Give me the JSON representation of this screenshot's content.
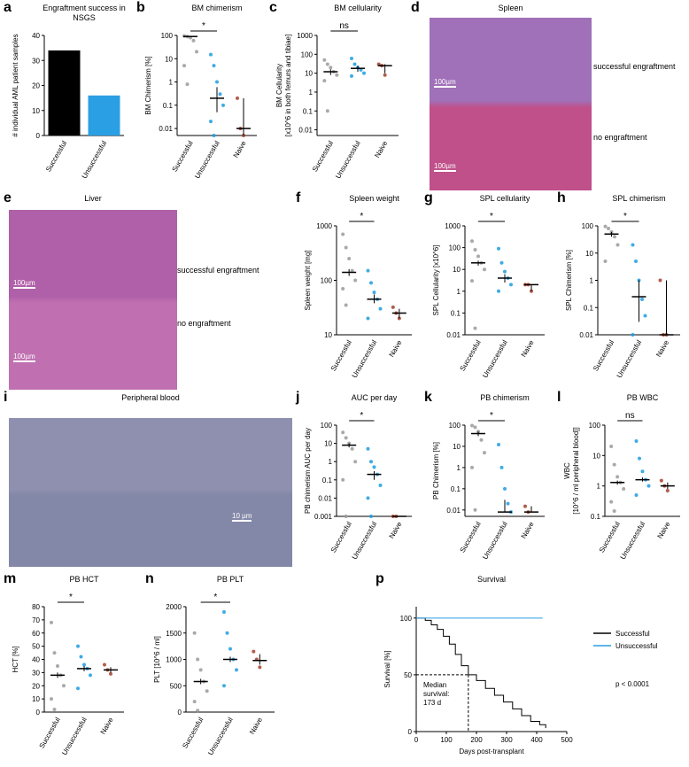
{
  "chart_data": [
    {
      "type": "bar",
      "panel": "a",
      "title": "Engraftment success in NSGS",
      "ylabel": [
        "# individual AML patient samples"
      ],
      "categories": [
        "Successful",
        "Unsuccessful"
      ],
      "values": [
        34,
        16
      ],
      "colors": [
        "#000000",
        "#2a9fe4"
      ],
      "ylim": [
        0,
        40
      ],
      "yticks": [
        0,
        10,
        20,
        30,
        40
      ]
    },
    {
      "type": "dot",
      "panel": "b",
      "title": "BM chimerism",
      "ylabel": [
        "BM Chimerism [%]"
      ],
      "log": true,
      "annotation": "*",
      "categories": [
        "Successful",
        "Unsuccessful",
        "Naive"
      ],
      "colors": [
        "#9a9a9a",
        "#1f9ce0",
        "#a5412b"
      ],
      "median": [
        90,
        0.2,
        0.01
      ],
      "low": [
        85,
        0.05,
        0.005
      ],
      "high": [
        95,
        0.6,
        0.2
      ],
      "points": [
        [
          95,
          90,
          80,
          60,
          20,
          5,
          0.8
        ],
        [
          15,
          5,
          1,
          0.3,
          0.1,
          0.02,
          0.005
        ],
        [
          0.2,
          0.01,
          0.005
        ]
      ],
      "ylim": [
        0.005,
        100
      ],
      "yticks": [
        0.01,
        0.1,
        1,
        10,
        100
      ]
    },
    {
      "type": "dot",
      "panel": "c",
      "title": "BM cellularity",
      "ylabel": [
        "BM Cellularity",
        "[x10^6 in both femurs and tibiae]"
      ],
      "log": true,
      "annotation": "ns",
      "categories": [
        "Successful",
        "Unsuccessful",
        "Naive"
      ],
      "colors": [
        "#9a9a9a",
        "#1f9ce0",
        "#a5412b"
      ],
      "median": [
        12,
        18,
        25
      ],
      "low": [
        8,
        12,
        10
      ],
      "high": [
        16,
        25,
        30
      ],
      "points": [
        [
          50,
          30,
          20,
          12,
          8,
          4,
          0.1
        ],
        [
          60,
          30,
          20,
          15,
          10,
          7
        ],
        [
          30,
          25,
          8
        ]
      ],
      "ylim": [
        0.005,
        1000
      ],
      "yticks": [
        0.01,
        0.1,
        1,
        10,
        100,
        1000
      ]
    },
    {
      "type": "dot",
      "panel": "f",
      "title": "Spleen weight",
      "ylabel": [
        "Spleen weight [mg]"
      ],
      "log": true,
      "annotation": "*",
      "categories": [
        "Successful",
        "Unsuccessful",
        "Naive"
      ],
      "colors": [
        "#9a9a9a",
        "#1f9ce0",
        "#a5412b"
      ],
      "median": [
        140,
        45,
        25
      ],
      "low": [
        120,
        38,
        20
      ],
      "high": [
        160,
        55,
        30
      ],
      "points": [
        [
          700,
          400,
          250,
          150,
          100,
          70,
          35
        ],
        [
          150,
          90,
          60,
          45,
          30,
          20
        ],
        [
          32,
          25,
          20
        ]
      ],
      "ylim": [
        10,
        1000
      ],
      "yticks": [
        10,
        100,
        1000
      ]
    },
    {
      "type": "dot",
      "panel": "g",
      "title": "SPL cellularity",
      "ylabel": [
        "SPL Cellularity [x10^6]"
      ],
      "log": true,
      "annotation": "*",
      "categories": [
        "Successful",
        "Unsuccessful",
        "Naive"
      ],
      "colors": [
        "#9a9a9a",
        "#1f9ce0",
        "#a5412b"
      ],
      "median": [
        20,
        4,
        2
      ],
      "low": [
        15,
        2.5,
        1
      ],
      "high": [
        25,
        6,
        2
      ],
      "points": [
        [
          200,
          80,
          40,
          20,
          10,
          3,
          0.02
        ],
        [
          90,
          20,
          8,
          4,
          2,
          1
        ],
        [
          2,
          2,
          1
        ]
      ],
      "ylim": [
        0.01,
        1000
      ],
      "yticks": [
        0.01,
        0.1,
        1,
        10,
        100,
        1000
      ]
    },
    {
      "type": "dot",
      "panel": "h",
      "title": "SPL chimerism",
      "ylabel": [
        "SPL Chimerism [%]"
      ],
      "log": true,
      "annotation": "*",
      "categories": [
        "Successful",
        "Unsuccessful",
        "Naive"
      ],
      "colors": [
        "#9a9a9a",
        "#1f9ce0",
        "#a5412b"
      ],
      "median": [
        50,
        0.25,
        0.01
      ],
      "low": [
        40,
        0.03,
        0.01
      ],
      "high": [
        60,
        1,
        1
      ],
      "points": [
        [
          95,
          80,
          60,
          40,
          20,
          5
        ],
        [
          20,
          5,
          1,
          0.2,
          0.05,
          0.01
        ],
        [
          1,
          0.01,
          0.01
        ]
      ],
      "ylim": [
        0.01,
        100
      ],
      "yticks": [
        0.01,
        0.1,
        1,
        10,
        100
      ]
    },
    {
      "type": "dot",
      "panel": "j",
      "title": "AUC per day",
      "ylabel": [
        "PB chimerism AUC per day"
      ],
      "log": true,
      "annotation": "*",
      "categories": [
        "Successful",
        "Unsuccessful",
        "Naive"
      ],
      "colors": [
        "#9a9a9a",
        "#1f9ce0",
        "#a5412b"
      ],
      "median": [
        8,
        0.2,
        0.001
      ],
      "low": [
        6,
        0.1,
        0.001
      ],
      "high": [
        10,
        0.3,
        0.001
      ],
      "points": [
        [
          40,
          20,
          10,
          5,
          1,
          0.1,
          0.001
        ],
        [
          5,
          1,
          0.5,
          0.2,
          0.05,
          0.01,
          0.001
        ],
        [
          0.001,
          0.001
        ]
      ],
      "ylim": [
        0.001,
        100
      ],
      "yticks": [
        0.001,
        0.01,
        0.1,
        1,
        10,
        100
      ]
    },
    {
      "type": "dot",
      "panel": "k",
      "title": "PB chimerism",
      "ylabel": [
        "PB Chimerism [%]"
      ],
      "log": true,
      "annotation": "*",
      "categories": [
        "Successful",
        "Unsuccessful",
        "Naive"
      ],
      "colors": [
        "#9a9a9a",
        "#1f9ce0",
        "#a5412b"
      ],
      "median": [
        40,
        0.008,
        0.008
      ],
      "low": [
        30,
        0.008,
        0.008
      ],
      "high": [
        50,
        0.03,
        0.015
      ],
      "points": [
        [
          95,
          80,
          50,
          20,
          5,
          1,
          0.01
        ],
        [
          12,
          1,
          0.1,
          0.02,
          0.008
        ],
        [
          0.015,
          0.008
        ]
      ],
      "ylim": [
        0.005,
        100
      ],
      "yticks": [
        0.01,
        0.1,
        1,
        10,
        100
      ]
    },
    {
      "type": "dot",
      "panel": "l",
      "title": "PB WBC",
      "ylabel": [
        "WBC",
        "[10^6 / ml peripheral blood]]"
      ],
      "log": true,
      "annotation": "ns",
      "categories": [
        "Successful",
        "Unsuccessful",
        "Naive"
      ],
      "colors": [
        "#9a9a9a",
        "#1f9ce0",
        "#a5412b"
      ],
      "median": [
        1.3,
        1.6,
        1
      ],
      "low": [
        1.1,
        1.4,
        0.8
      ],
      "high": [
        1.5,
        1.9,
        1.3
      ],
      "points": [
        [
          20,
          5,
          2,
          1.3,
          0.8,
          0.3,
          0.15
        ],
        [
          30,
          8,
          3,
          1.6,
          1,
          0.5
        ],
        [
          1.5,
          1,
          0.7
        ]
      ],
      "ylim": [
        0.1,
        100
      ],
      "yticks": [
        0.1,
        1,
        10,
        100
      ]
    },
    {
      "type": "dot",
      "panel": "m",
      "title": "PB HCT",
      "ylabel": [
        "HCT [%]"
      ],
      "log": false,
      "annotation": "*",
      "categories": [
        "Successful",
        "Unsuccessful",
        "Naive"
      ],
      "colors": [
        "#9a9a9a",
        "#1f9ce0",
        "#a5412b"
      ],
      "median": [
        28,
        33,
        32
      ],
      "low": [
        26,
        31,
        30
      ],
      "high": [
        30,
        35,
        34
      ],
      "points": [
        [
          68,
          45,
          35,
          28,
          20,
          10,
          2
        ],
        [
          50,
          42,
          36,
          33,
          28,
          18
        ],
        [
          36,
          32,
          29
        ]
      ],
      "ylim": [
        0,
        80
      ],
      "yticks": [
        0,
        10,
        20,
        30,
        40,
        50,
        60,
        70,
        80
      ]
    },
    {
      "type": "dot",
      "panel": "n",
      "title": "PB PLT",
      "ylabel": [
        "PLT [10^6 / ml]"
      ],
      "log": false,
      "annotation": "*",
      "categories": [
        "Successful",
        "Unsuccessful",
        "Naive"
      ],
      "colors": [
        "#9a9a9a",
        "#1f9ce0",
        "#a5412b"
      ],
      "median": [
        580,
        1000,
        980
      ],
      "low": [
        530,
        950,
        900
      ],
      "high": [
        630,
        1050,
        1100
      ],
      "points": [
        [
          1500,
          1000,
          800,
          580,
          400,
          200,
          30
        ],
        [
          1900,
          1500,
          1200,
          1000,
          800,
          500
        ],
        [
          1150,
          1000,
          850
        ]
      ],
      "ylim": [
        0,
        2000
      ],
      "yticks": [
        0,
        500,
        1000,
        1500,
        2000
      ]
    },
    {
      "type": "survival",
      "panel": "p",
      "title": "Survival",
      "ylabel": [
        "Survival [%]"
      ],
      "xlabel": "Days post-transplant",
      "series": [
        {
          "name": "Successful",
          "color": "#000000",
          "x": [
            0,
            30,
            50,
            70,
            90,
            110,
            130,
            150,
            173,
            200,
            230,
            260,
            290,
            320,
            350,
            380,
            410,
            430
          ],
          "values": [
            100,
            98,
            94,
            90,
            84,
            77,
            68,
            58,
            50,
            45,
            38,
            32,
            26,
            20,
            14,
            9,
            6,
            3
          ]
        },
        {
          "name": "Unsuccessful",
          "color": "#2a9fe4",
          "x": [
            0,
            420
          ],
          "values": [
            100,
            100
          ]
        }
      ],
      "median_x": 173,
      "median_y": 50,
      "median_label": [
        "Median",
        "survival:",
        "173 d"
      ],
      "p_value": "p < 0.0001",
      "xlim": [
        0,
        500
      ],
      "xticks": [
        0,
        100,
        200,
        300,
        400,
        500
      ],
      "ylim": [
        0,
        110
      ],
      "yticks": [
        0,
        50,
        100
      ]
    }
  ],
  "images": [
    {
      "panel": "d",
      "title": "Spleen",
      "labels": [
        "successful engraftment",
        "no engraftment"
      ],
      "scale_bars": [
        "100µm",
        "100µm"
      ]
    },
    {
      "panel": "e",
      "title": "Liver",
      "labels": [
        "successful engraftment",
        "no engraftment"
      ],
      "scale_bars": [
        "100µm",
        "100µm"
      ]
    },
    {
      "panel": "i",
      "title": "Peripheral blood",
      "labels": [],
      "scale_bars": [
        "10 µm"
      ]
    }
  ]
}
